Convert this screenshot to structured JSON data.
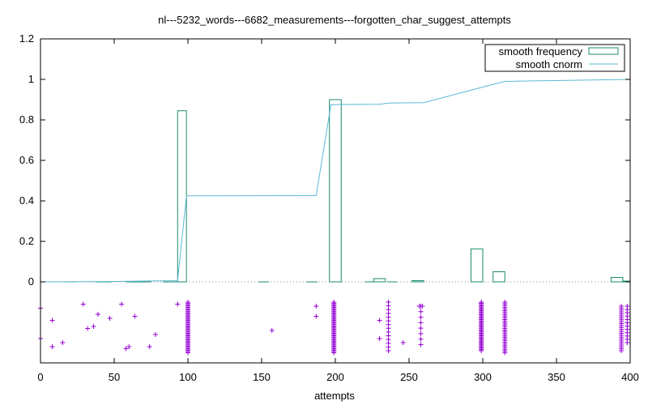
{
  "chart_data": {
    "type": "bar",
    "title": "nl---5232_words---6682_measurements---forgotten_char_suggest_attempts",
    "xlabel": "attempts",
    "ylabel": "",
    "xlim": [
      0,
      400
    ],
    "ylim": [
      -0.4,
      1.2
    ],
    "x_ticks": [
      0,
      50,
      100,
      150,
      200,
      250,
      300,
      350,
      400
    ],
    "y_ticks": [
      0,
      0.2,
      0.4,
      0.6,
      0.8,
      1,
      1.2
    ],
    "x_tick_labels": [
      "0",
      "50",
      "100",
      "150",
      "200",
      "250",
      "300",
      "350",
      "400"
    ],
    "y_tick_labels": [
      "0",
      "0.2",
      "0.4",
      "0.6",
      "0.8",
      "1",
      "1.2"
    ],
    "grid": false,
    "legend_position": "top-right",
    "colors": {
      "frequency": "#1a8a6e",
      "cnorm": "#5bb8d6",
      "points": "#9400d3",
      "axis": "#000000",
      "zero_line": "#888888"
    },
    "series": [
      {
        "name": "smooth frequency",
        "style": "boxes",
        "bars": [
          {
            "x0": 93,
            "x1": 99,
            "y": 0.845
          },
          {
            "x0": 196,
            "x1": 204,
            "y": 0.9
          },
          {
            "x0": 226,
            "x1": 234,
            "y": 0.016
          },
          {
            "x0": 252,
            "x1": 260,
            "y": 0.006
          },
          {
            "x0": 292,
            "x1": 300,
            "y": 0.163
          },
          {
            "x0": 307,
            "x1": 315,
            "y": 0.05
          },
          {
            "x0": 387,
            "x1": 395,
            "y": 0.022
          },
          {
            "x0": 395,
            "x1": 400,
            "y": 0.004
          }
        ],
        "minor_segments": [
          [
            0,
            8
          ],
          [
            15,
            25
          ],
          [
            38,
            48
          ],
          [
            58,
            75
          ],
          [
            83,
            93
          ],
          [
            148,
            155
          ],
          [
            180,
            188
          ],
          [
            220,
            226
          ],
          [
            235,
            242
          ]
        ]
      },
      {
        "name": "smooth cnorm",
        "style": "line",
        "x": [
          0,
          50,
          70,
          93,
          99,
          187,
          197,
          204,
          230,
          236,
          260,
          300,
          315,
          400
        ],
        "y": [
          0,
          0.002,
          0.004,
          0.006,
          0.425,
          0.426,
          0.875,
          0.876,
          0.877,
          0.883,
          0.885,
          0.962,
          0.99,
          1.0
        ]
      }
    ],
    "raw_points": {
      "marker": "+",
      "scattered": [
        {
          "x": 0,
          "y": -0.13
        },
        {
          "x": 0,
          "y": -0.28
        },
        {
          "x": 8,
          "y": -0.19
        },
        {
          "x": 8,
          "y": -0.32
        },
        {
          "x": 15,
          "y": -0.3
        },
        {
          "x": 29,
          "y": -0.11
        },
        {
          "x": 32,
          "y": -0.23
        },
        {
          "x": 36,
          "y": -0.22
        },
        {
          "x": 39,
          "y": -0.16
        },
        {
          "x": 47,
          "y": -0.18
        },
        {
          "x": 55,
          "y": -0.11
        },
        {
          "x": 58,
          "y": -0.33
        },
        {
          "x": 60,
          "y": -0.32
        },
        {
          "x": 64,
          "y": -0.17
        },
        {
          "x": 74,
          "y": -0.32
        },
        {
          "x": 78,
          "y": -0.26
        },
        {
          "x": 93,
          "y": -0.11
        },
        {
          "x": 157,
          "y": -0.24
        },
        {
          "x": 187,
          "y": -0.12
        },
        {
          "x": 187,
          "y": -0.17
        },
        {
          "x": 230,
          "y": -0.19
        },
        {
          "x": 230,
          "y": -0.28
        },
        {
          "x": 246,
          "y": -0.3
        },
        {
          "x": 257,
          "y": -0.12
        },
        {
          "x": 259,
          "y": -0.12
        }
      ],
      "clusters": [
        {
          "x": 100,
          "y_min": -0.1,
          "y_max": -0.35,
          "count": 40
        },
        {
          "x": 199,
          "y_min": -0.1,
          "y_max": -0.35,
          "count": 40
        },
        {
          "x": 236,
          "y_min": -0.1,
          "y_max": -0.34,
          "count": 14
        },
        {
          "x": 258,
          "y_min": -0.12,
          "y_max": -0.31,
          "count": 8
        },
        {
          "x": 299,
          "y_min": -0.1,
          "y_max": -0.34,
          "count": 40
        },
        {
          "x": 315,
          "y_min": -0.1,
          "y_max": -0.35,
          "count": 30
        },
        {
          "x": 394,
          "y_min": -0.12,
          "y_max": -0.34,
          "count": 24
        },
        {
          "x": 398,
          "y_min": -0.12,
          "y_max": -0.3,
          "count": 12
        }
      ]
    }
  }
}
